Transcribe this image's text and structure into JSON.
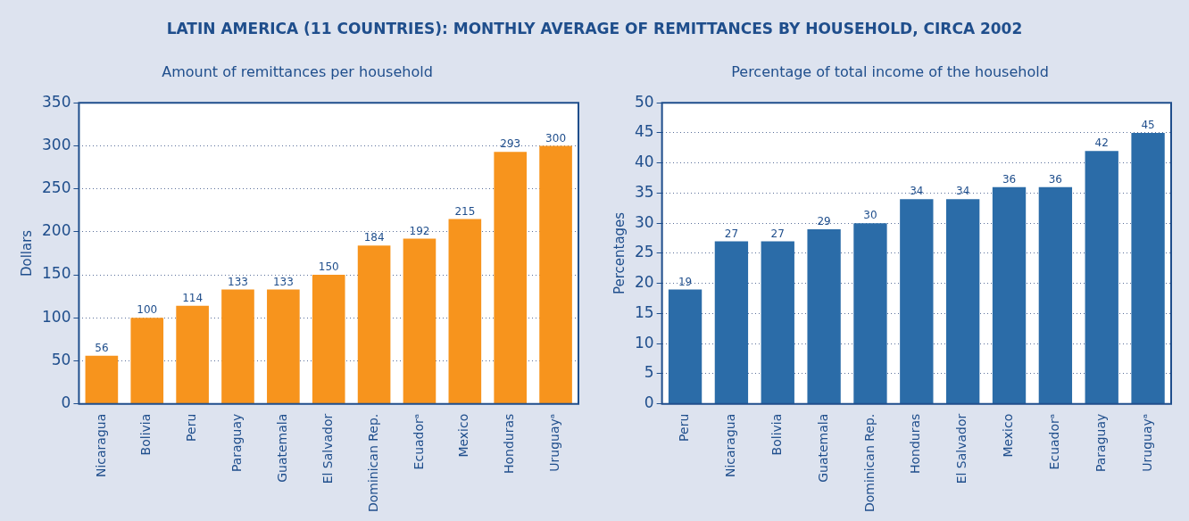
{
  "chart_data": [
    {
      "type": "bar",
      "title": "LATIN AMERICA (11 COUNTRIES): MONTHLY AVERAGE OF REMITTANCES BY HOUSEHOLD, CIRCA 2002",
      "subtitle": "Amount of remittances per household",
      "ylabel": "Dollars",
      "categories": [
        "Nicaragua",
        "Bolivia",
        "Peru",
        "Paraguay",
        "Guatemala",
        "El Salvador",
        "Dominican Rep.",
        "Ecuadorᵃ",
        "Mexico",
        "Honduras",
        "Uruguayᵃ"
      ],
      "values": [
        56,
        100,
        114,
        133,
        133,
        150,
        184,
        192,
        215,
        293,
        300
      ],
      "color": "#f7941d",
      "ylim": [
        0,
        350
      ],
      "yticks": [
        0,
        50,
        100,
        150,
        200,
        250,
        300,
        350
      ],
      "grid": "y",
      "data_labels": true
    },
    {
      "type": "bar",
      "subtitle": "Percentage of total income of the household",
      "ylabel": "Percentages",
      "categories": [
        "Peru",
        "Nicaragua",
        "Bolivia",
        "Guatemala",
        "Dominican Rep.",
        "Honduras",
        "El Salvador",
        "Mexico",
        "Ecuadorᵃ",
        "Paraguay",
        "Uruguayᵃ"
      ],
      "values": [
        19,
        27,
        27,
        29,
        30,
        34,
        34,
        36,
        36,
        42,
        45
      ],
      "color": "#2b6ca8",
      "ylim": [
        0,
        50
      ],
      "yticks": [
        0,
        5,
        10,
        15,
        20,
        25,
        30,
        35,
        40,
        45,
        50
      ],
      "grid": "y",
      "data_labels": true
    }
  ]
}
